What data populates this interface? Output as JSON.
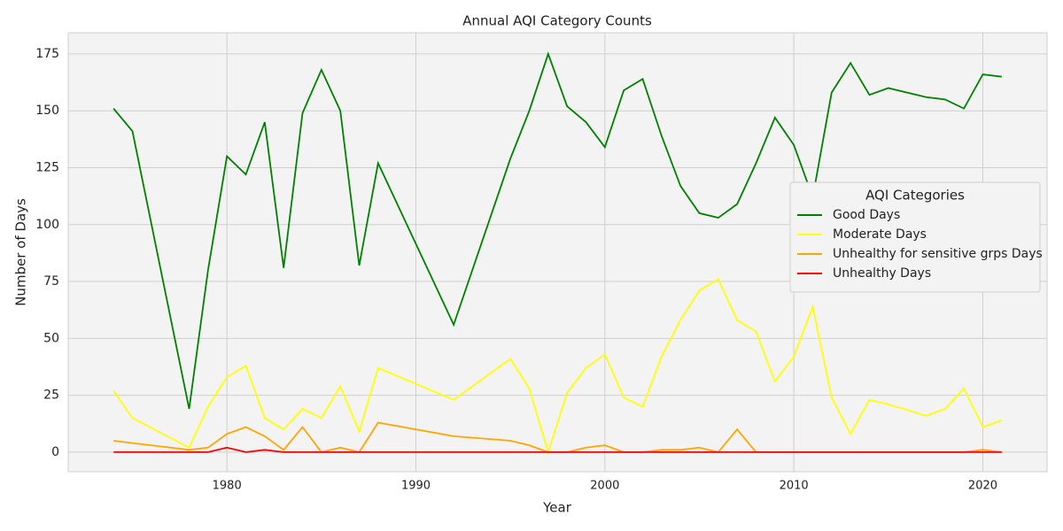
{
  "chart_data": {
    "type": "line",
    "title": "Annual AQI Category Counts",
    "x_label": "Year",
    "y_label": "Number of Days",
    "x": [
      1974,
      1975,
      1978,
      1979,
      1980,
      1981,
      1982,
      1983,
      1984,
      1985,
      1986,
      1987,
      1988,
      1992,
      1995,
      1996,
      1997,
      1998,
      1999,
      2000,
      2001,
      2002,
      2003,
      2004,
      2005,
      2006,
      2007,
      2008,
      2009,
      2010,
      2011,
      2012,
      2013,
      2014,
      2015,
      2017,
      2018,
      2019,
      2020,
      2021
    ],
    "series": [
      {
        "name": "Good Days",
        "color": "#008000",
        "values": [
          151,
          141,
          19,
          80,
          130,
          122,
          145,
          81,
          149,
          168,
          150,
          82,
          127,
          56,
          129,
          150,
          175,
          152,
          145,
          134,
          159,
          164,
          139,
          117,
          105,
          103,
          109,
          127,
          147,
          135,
          112,
          158,
          171,
          157,
          160,
          156,
          155,
          151,
          166,
          165
        ]
      },
      {
        "name": "Moderate Days",
        "color": "#ffff00",
        "values": [
          27,
          15,
          2,
          20,
          33,
          38,
          15,
          10,
          19,
          15,
          29,
          9,
          37,
          23,
          41,
          28,
          0,
          26,
          37,
          43,
          24,
          20,
          42,
          58,
          71,
          76,
          58,
          53,
          31,
          42,
          64,
          24,
          8,
          23,
          21,
          16,
          19,
          28,
          11,
          14
        ]
      },
      {
        "name": "Unhealthy for sensitive grps Days",
        "color": "#ffa500",
        "values": [
          5,
          4,
          1,
          2,
          8,
          11,
          7,
          1,
          11,
          0,
          2,
          0,
          13,
          7,
          5,
          3,
          0,
          0,
          2,
          3,
          0,
          0,
          1,
          1,
          2,
          0,
          10,
          0,
          0,
          0,
          0,
          0,
          0,
          0,
          0,
          0,
          0,
          0,
          1,
          0
        ]
      },
      {
        "name": "Unhealthy Days",
        "color": "#ff0000",
        "values": [
          0,
          0,
          0,
          0,
          2,
          0,
          1,
          0,
          0,
          0,
          0,
          0,
          0,
          0,
          0,
          0,
          0,
          0,
          0,
          0,
          0,
          0,
          0,
          0,
          0,
          0,
          0,
          0,
          0,
          0,
          0,
          0,
          0,
          0,
          0,
          0,
          0,
          0,
          0,
          0
        ]
      }
    ],
    "legend_title": "AQI Categories",
    "legend": "center right",
    "xlim": [
      1971.6,
      2023.4
    ],
    "ylim": [
      -8.6,
      184.3
    ],
    "xticks": [
      1980,
      1990,
      2000,
      2010,
      2020
    ],
    "yticks": [
      0,
      25,
      50,
      75,
      100,
      125,
      150,
      175
    ],
    "grid": true
  }
}
